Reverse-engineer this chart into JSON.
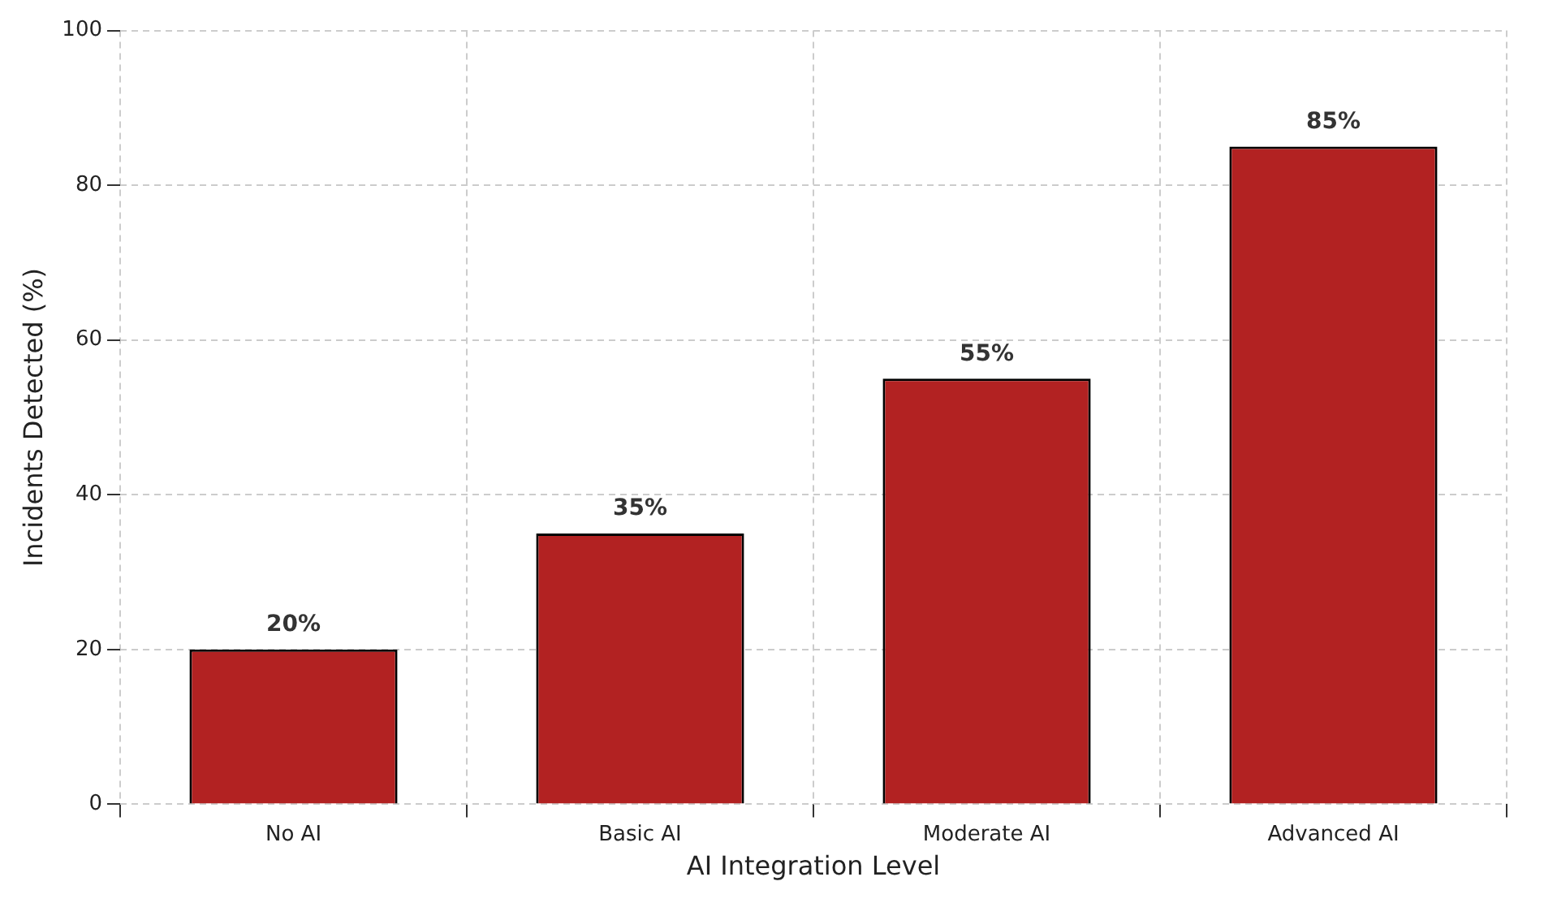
{
  "chart_data": {
    "type": "bar",
    "xlabel": "AI Integration Level",
    "ylabel": "Incidents Detected (%)",
    "categories": [
      "No AI",
      "Basic AI",
      "Moderate AI",
      "Advanced AI"
    ],
    "values": [
      20,
      35,
      55,
      85
    ],
    "value_labels": [
      "20%",
      "35%",
      "55%",
      "85%"
    ],
    "color": "#b22222",
    "ylim": [
      0,
      100
    ],
    "yticks": [
      0,
      20,
      40,
      60,
      80,
      100
    ],
    "grid": true
  }
}
